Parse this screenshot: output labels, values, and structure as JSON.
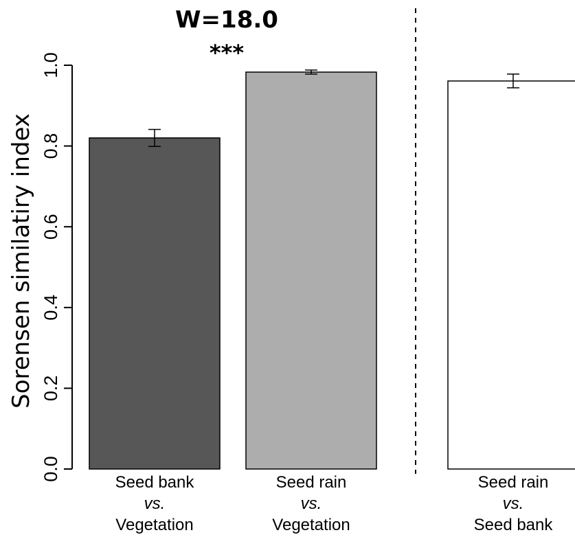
{
  "chart_data": {
    "type": "bar",
    "ylabel": "Sorensen similatiry index",
    "ylim": [
      0,
      1
    ],
    "yticks": [
      "0.0",
      "0.2",
      "0.4",
      "0.6",
      "0.8",
      "1.0"
    ],
    "categories": [
      {
        "line1": "Seed bank",
        "line2": "vs.",
        "line3": "Vegetation"
      },
      {
        "line1": "Seed rain",
        "line2": "vs.",
        "line3": "Vegetation"
      },
      {
        "line1": "Seed rain",
        "line2": "vs.",
        "line3": "Seed bank"
      }
    ],
    "values": [
      0.82,
      0.983,
      0.961
    ],
    "errors": [
      0.021,
      0.005,
      0.017
    ],
    "colors": [
      "#575757",
      "#adadad",
      "#ffffff"
    ],
    "annotation": {
      "stat": "W=18.0",
      "significance": "***"
    },
    "divider": "dashed vertical line between Vegetation comparisons and Seed rain vs. Seed bank"
  }
}
